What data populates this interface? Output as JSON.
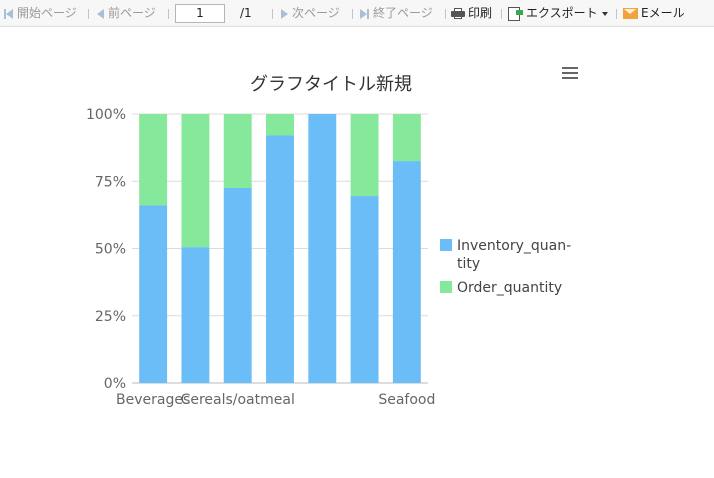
{
  "toolbar": {
    "first_page": "開始ページ",
    "prev_page": "前ページ",
    "page_value": "1",
    "page_total": "/1",
    "next_page": "次ページ",
    "last_page": "終了ページ",
    "print": "印刷",
    "export": "エクスポート",
    "email": "Eメール"
  },
  "colors": {
    "inventory": "#6bbdf7",
    "order": "#85e89a",
    "grid": "#dcdcdc",
    "text": "#666666"
  },
  "chart_data": {
    "type": "bar",
    "stacked": "percent",
    "title": "グラフタイトル新規",
    "xlabel": "",
    "ylabel": "",
    "ylim": [
      0,
      100
    ],
    "yticks": [
      "0%",
      "25%",
      "50%",
      "75%",
      "100%"
    ],
    "categories": [
      "Beverages",
      "",
      "Cereals/oatmeal",
      "",
      "",
      "",
      "Seafood"
    ],
    "series": [
      {
        "name": "Inventory_quantity",
        "values": [
          66,
          50.5,
          72.5,
          92,
          100,
          69.5,
          82.5
        ]
      },
      {
        "name": "Order_quantity",
        "values": [
          34,
          49.5,
          27.5,
          8,
          0,
          30.5,
          17.5
        ]
      }
    ],
    "legend_position": "right",
    "grid": true
  }
}
